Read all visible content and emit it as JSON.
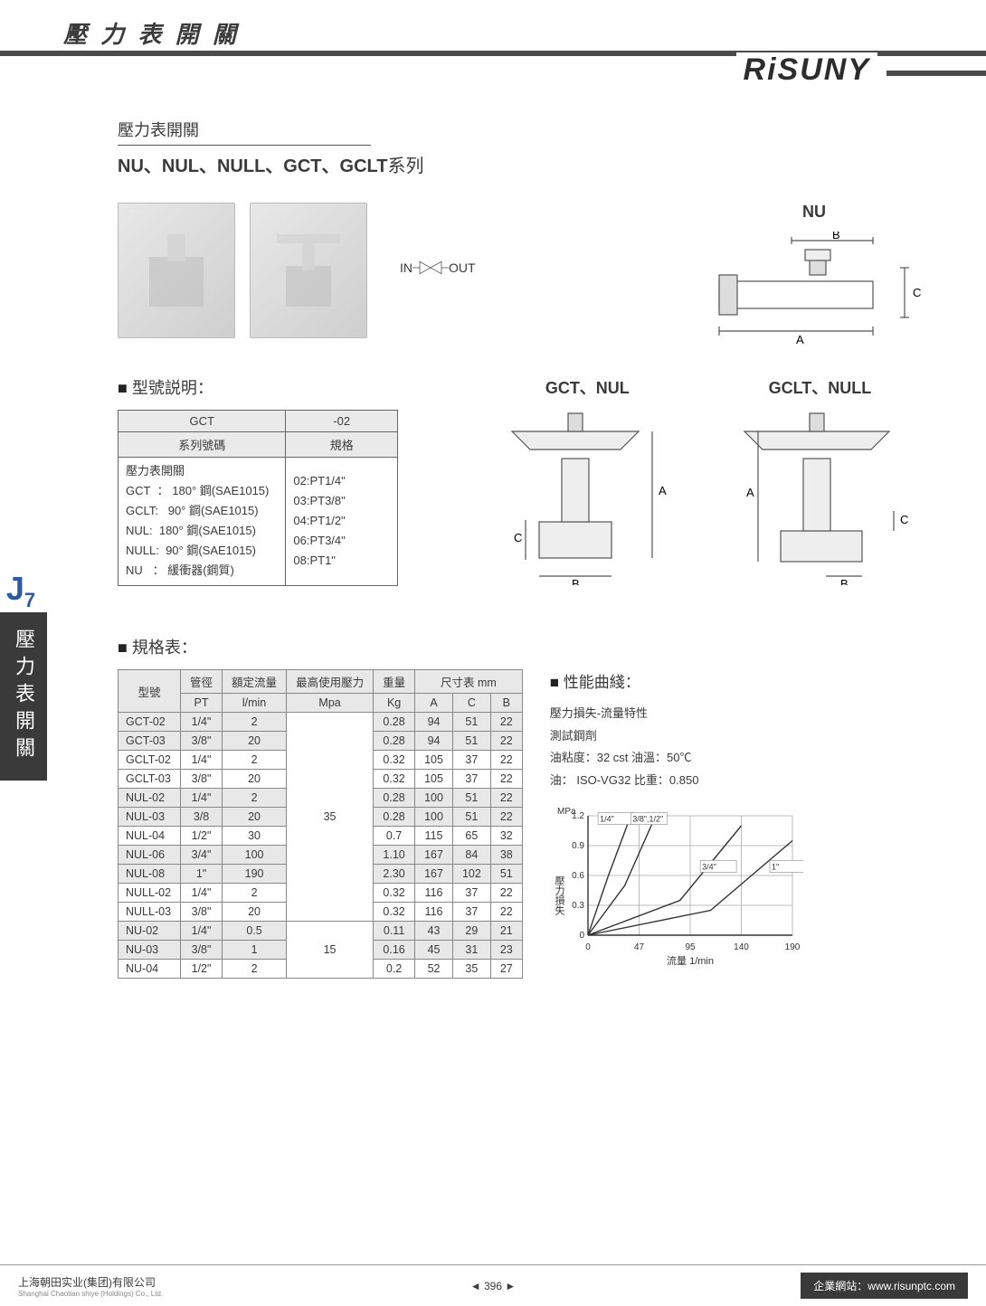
{
  "header": {
    "category": "壓 力 表 開 關",
    "brand": "RiSUNY"
  },
  "subtitle": "壓力表開關",
  "series_line": {
    "bold": "NU、NUL、NULL、GCT、GCLT",
    "suffix": "系列"
  },
  "inout": {
    "in": "IN",
    "out": "OUT"
  },
  "diagram_titles": {
    "nu": "NU",
    "gct_nul": "GCT、NUL",
    "gclt_null": "GCLT、NULL"
  },
  "diagram_dims": {
    "a": "A",
    "b": "B",
    "c": "C"
  },
  "model_explain": {
    "heading": "型號説明：",
    "col1_head": "GCT",
    "col2_head": "-02",
    "row1_l": "系列號碼",
    "row1_r": "規格",
    "left_lines": [
      "壓力表開關",
      "GCT  ： 180° 鋼(SAE1015)",
      "GCLT:   90° 鋼(SAE1015)",
      "NUL:  180° 鋼(SAE1015)",
      "NULL:  90° 鋼(SAE1015)",
      "NU   ： 緩衝器(鋼質)"
    ],
    "right_lines": [
      "02:PT1/4\"",
      "03:PT3/8\"",
      "04:PT1/2\"",
      "06:PT3/4\"",
      "08:PT1\""
    ]
  },
  "spec": {
    "heading": "規格表：",
    "columns": {
      "model": "型號",
      "pipe_top": "管徑",
      "pipe_sub": "PT",
      "flow_top": "額定流量",
      "flow_sub": "l/min",
      "press_top": "最高使用壓力",
      "press_sub": "Mpa",
      "weight_top": "重量",
      "weight_sub": "Kg",
      "dim_group": "尺寸表  mm",
      "A": "A",
      "C": "C",
      "B": "B"
    },
    "press_groups": [
      {
        "value": "35",
        "span": 11
      },
      {
        "value": "15",
        "span": 3
      }
    ],
    "rows": [
      {
        "model": "GCT-02",
        "pt": "1/4\"",
        "flow": "2",
        "kg": "0.28",
        "A": "94",
        "C": "51",
        "B": "22",
        "alt": true
      },
      {
        "model": "GCT-03",
        "pt": "3/8\"",
        "flow": "20",
        "kg": "0.28",
        "A": "94",
        "C": "51",
        "B": "22",
        "alt": true
      },
      {
        "model": "GCLT-02",
        "pt": "1/4\"",
        "flow": "2",
        "kg": "0.32",
        "A": "105",
        "C": "37",
        "B": "22"
      },
      {
        "model": "GCLT-03",
        "pt": "3/8\"",
        "flow": "20",
        "kg": "0.32",
        "A": "105",
        "C": "37",
        "B": "22"
      },
      {
        "model": "NUL-02",
        "pt": "1/4\"",
        "flow": "2",
        "kg": "0.28",
        "A": "100",
        "C": "51",
        "B": "22",
        "alt": true
      },
      {
        "model": "NUL-03",
        "pt": "3/8",
        "flow": "20",
        "kg": "0.28",
        "A": "100",
        "C": "51",
        "B": "22",
        "alt": true
      },
      {
        "model": "NUL-04",
        "pt": "1/2\"",
        "flow": "30",
        "kg": "0.7",
        "A": "115",
        "C": "65",
        "B": "32"
      },
      {
        "model": "NUL-06",
        "pt": "3/4\"",
        "flow": "100",
        "kg": "1.10",
        "A": "167",
        "C": "84",
        "B": "38",
        "alt": true
      },
      {
        "model": "NUL-08",
        "pt": "1\"",
        "flow": "190",
        "kg": "2.30",
        "A": "167",
        "C": "102",
        "B": "51",
        "alt": true
      },
      {
        "model": "NULL-02",
        "pt": "1/4\"",
        "flow": "2",
        "kg": "0.32",
        "A": "116",
        "C": "37",
        "B": "22"
      },
      {
        "model": "NULL-03",
        "pt": "3/8\"",
        "flow": "20",
        "kg": "0.32",
        "A": "116",
        "C": "37",
        "B": "22"
      },
      {
        "model": "NU-02",
        "pt": "1/4\"",
        "flow": "0.5",
        "kg": "0.11",
        "A": "43",
        "C": "29",
        "B": "21",
        "alt": true
      },
      {
        "model": "NU-03",
        "pt": "3/8\"",
        "flow": "1",
        "kg": "0.16",
        "A": "45",
        "C": "31",
        "B": "23",
        "alt": true
      },
      {
        "model": "NU-04",
        "pt": "1/2\"",
        "flow": "2",
        "kg": "0.2",
        "A": "52",
        "C": "35",
        "B": "27"
      }
    ]
  },
  "perf": {
    "heading": "性能曲綫：",
    "lines": [
      "壓力損失-流量特性",
      "測試鋼劑",
      "油粘度：32 cst   油溫：50℃",
      "油： ISO-VG32   比重：0.850"
    ],
    "chart": {
      "y_label": "壓力損失",
      "y_unit": "MPa",
      "x_label": "流量   1/min",
      "x_ticks": [
        "0",
        "47",
        "95",
        "140",
        "190"
      ],
      "y_ticks": [
        "0",
        "0.3",
        "0.6",
        "0.9",
        "1.2"
      ],
      "series_labels": [
        "1/4\"",
        "3/8\",1/2\"",
        "3/4\"",
        "1\""
      ],
      "colors": {
        "axis": "#333333",
        "grid": "#bcbcbc",
        "line": "#333333"
      }
    }
  },
  "sidetab": {
    "code": "J",
    "num": "7",
    "label": "壓力表開關"
  },
  "footer": {
    "company": "上海朝田实业(集团)有限公司",
    "company_sub": "Shanghai Chaotian shiye (Holdings) Co., Ltd.",
    "page": "◄  396  ►",
    "site_label": "企業網站：",
    "site": "www.risunptc.com"
  }
}
